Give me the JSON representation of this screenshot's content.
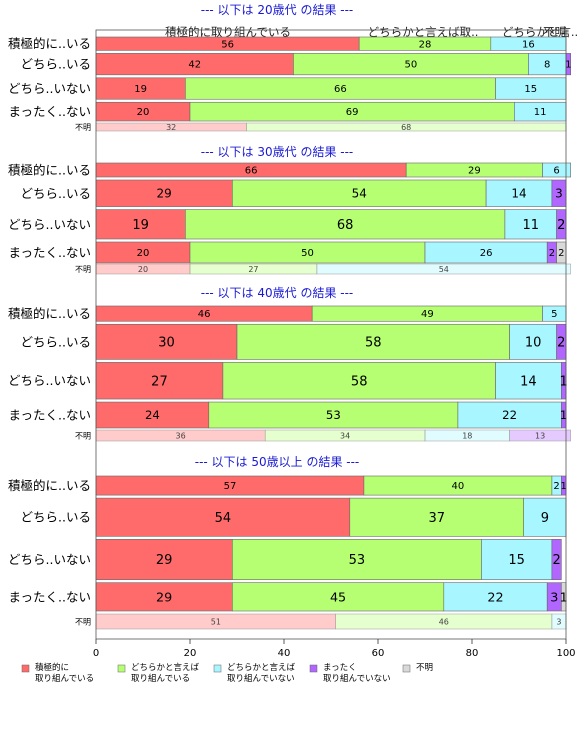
{
  "colors": {
    "積極的に取り組んでいる": "#ff6b6b",
    "どちらかと言えば取り組んでいる": "#b6ff73",
    "どちらかと言えば取り組んでいない": "#a8f6ff",
    "まったく取り組んでいない": "#b167ff",
    "不明": "#d9d9d9",
    "title": "#1a1ad6",
    "frame": "#555555"
  },
  "header_labels": [
    "積極的に取り組んでいる",
    "どちらかと言えば取..",
    "どちらかと言..",
    "不明"
  ],
  "legend": [
    {
      "line1": "積極的に",
      "line2": "取り組んでいる",
      "color_key": "積極的に取り組んでいる"
    },
    {
      "line1": "どちらかと言えば",
      "line2": "取り組んでいる",
      "color_key": "どちらかと言えば取り組んでいる"
    },
    {
      "line1": "どちらかと言えば",
      "line2": "取り組んでいない",
      "color_key": "どちらかと言えば取り組んでいない"
    },
    {
      "line1": "まったく",
      "line2": "取り組んでいない",
      "color_key": "まったく取り組んでいない"
    },
    {
      "line1": "不明",
      "line2": "",
      "color_key": "不明"
    }
  ],
  "chart_data": {
    "type": "bar",
    "orientation": "horizontal-stacked-100",
    "xlim": [
      0,
      100
    ],
    "xticks": [
      0,
      20,
      40,
      60,
      80,
      100
    ],
    "categories": [
      "積極的に取り組んでいる",
      "どちらかと言えば取り組んでいる",
      "どちらかと言えば取り組んでいない",
      "まったく取り組んでいない",
      "不明"
    ],
    "panels": [
      {
        "title": "--- 以下は 20歳代 の結果 ---",
        "rows": [
          {
            "label": "積極的に..いる",
            "values": [
              56,
              28,
              16,
              0,
              0
            ],
            "weight": 1.0
          },
          {
            "label": "どちら..いる",
            "values": [
              42,
              50,
              8,
              1,
              0
            ],
            "weight": 1.6
          },
          {
            "label": "どちら..いない",
            "values": [
              19,
              66,
              15,
              0,
              0
            ],
            "weight": 1.6
          },
          {
            "label": "まったく..ない",
            "values": [
              20,
              69,
              11,
              0,
              0
            ],
            "weight": 1.4
          }
        ],
        "unknown_row": {
          "label": "不明",
          "values": [
            32,
            68,
            0,
            0,
            0
          ]
        }
      },
      {
        "title": "--- 以下は 30歳代 の結果 ---",
        "rows": [
          {
            "label": "積極的に..いる",
            "values": [
              66,
              29,
              6,
              0,
              0
            ],
            "weight": 1.0
          },
          {
            "label": "どちら..いる",
            "values": [
              29,
              54,
              14,
              3,
              0
            ],
            "weight": 1.9
          },
          {
            "label": "どちら..いない",
            "values": [
              19,
              68,
              11,
              2,
              0
            ],
            "weight": 2.1
          },
          {
            "label": "まったく..ない",
            "values": [
              20,
              50,
              26,
              2,
              2
            ],
            "weight": 1.5
          }
        ],
        "unknown_row": {
          "label": "不明",
          "values": [
            20,
            27,
            54,
            0,
            0
          ]
        }
      },
      {
        "title": "--- 以下は 40歳代 の結果 ---",
        "rows": [
          {
            "label": "積極的に..いる",
            "values": [
              46,
              49,
              5,
              0,
              0
            ],
            "weight": 1.0
          },
          {
            "label": "どちら..いる",
            "values": [
              30,
              58,
              10,
              2,
              0
            ],
            "weight": 2.3
          },
          {
            "label": "どちら..いない",
            "values": [
              27,
              58,
              14,
              1,
              0
            ],
            "weight": 2.4
          },
          {
            "label": "まったく..ない",
            "values": [
              24,
              53,
              22,
              1,
              0
            ],
            "weight": 1.7
          }
        ],
        "unknown_row": {
          "label": "不明",
          "values": [
            36,
            34,
            18,
            13,
            0
          ]
        }
      },
      {
        "title": "--- 以下は 50歳以上 の結果 ---",
        "rows": [
          {
            "label": "積極的に..いる",
            "values": [
              57,
              40,
              2,
              1,
              0
            ],
            "weight": 1.35
          },
          {
            "label": "どちら..いる",
            "values": [
              54,
              37,
              9,
              0,
              0
            ],
            "weight": 2.7
          },
          {
            "label": "どちら..いない",
            "values": [
              29,
              53,
              15,
              2,
              0
            ],
            "weight": 2.85
          },
          {
            "label": "まったく..ない",
            "values": [
              29,
              45,
              22,
              3,
              1
            ],
            "weight": 2.0
          }
        ],
        "unknown_row": {
          "label": "不明",
          "values": [
            51,
            46,
            3,
            0,
            0
          ]
        }
      }
    ]
  }
}
